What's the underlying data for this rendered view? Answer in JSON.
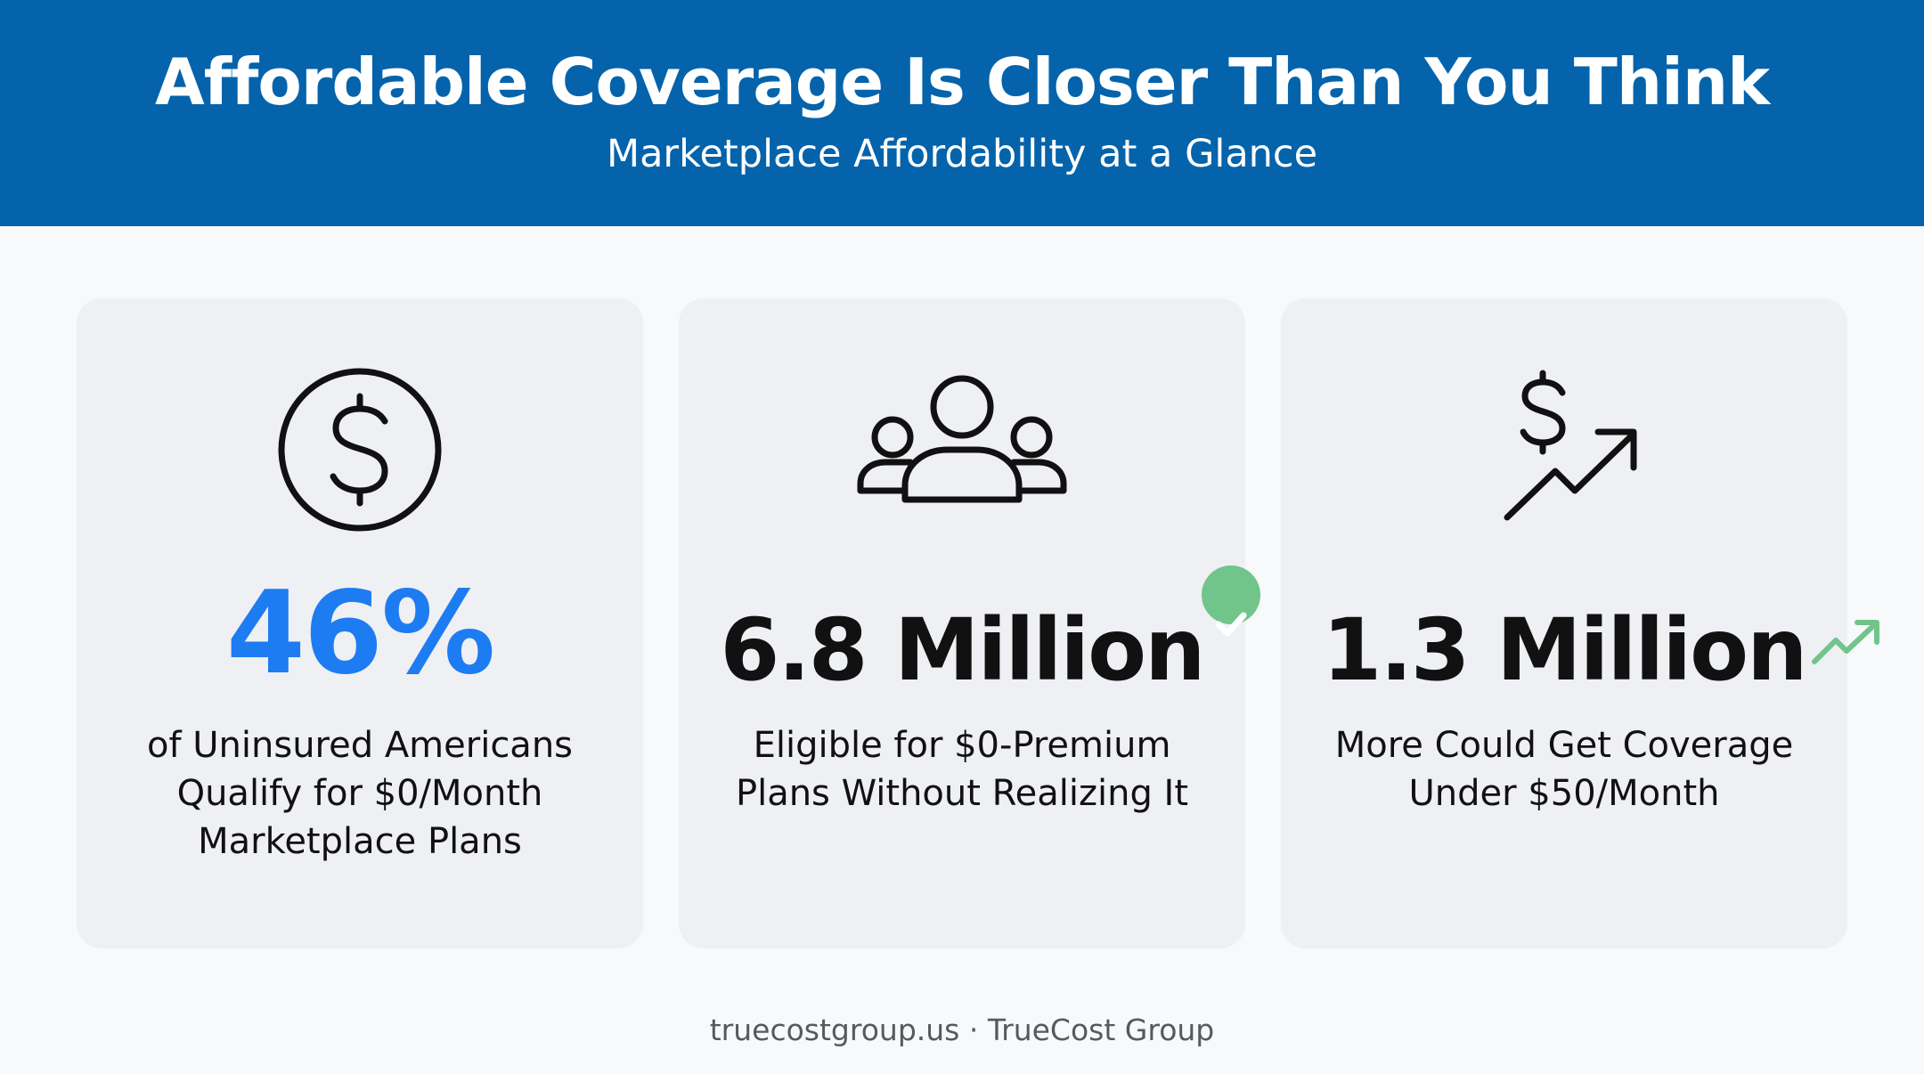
{
  "header": {
    "title": "Affordable Coverage Is Closer Than You Think",
    "subtitle": "Marketplace Affordability at a Glance"
  },
  "cards": [
    {
      "icon": "dollar-circle-icon",
      "stat": "46%",
      "description_lines": [
        "of Uninsured Americans",
        "Qualify for $0/Month",
        "Marketplace Plans"
      ]
    },
    {
      "icon": "people-group-icon",
      "badge_icon": "check-circle-icon",
      "stat": "6.8 Million",
      "description_lines": [
        "Eligible for $0-Premium",
        "Plans Without Realizing It"
      ]
    },
    {
      "icon": "dollar-trend-up-icon",
      "badge_icon": "trend-up-icon",
      "stat": "1.3 Million",
      "description_lines": [
        "More Could Get Coverage",
        "Under $50/Month"
      ]
    }
  ],
  "footer": {
    "text": "truecostgroup.us · TrueCost Group"
  },
  "colors": {
    "header_bg": "#0463ab",
    "accent_blue": "#1d7cf2",
    "check_green": "#71c48a",
    "card_bg": "#eff0f3"
  }
}
